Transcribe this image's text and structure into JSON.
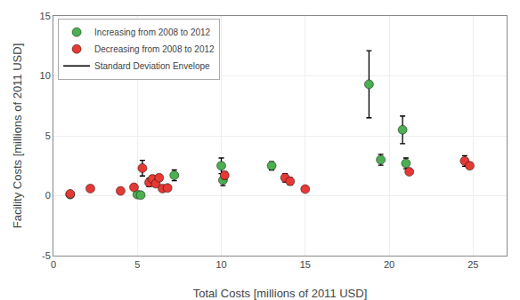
{
  "chart_data": {
    "type": "scatter",
    "xlabel": "Total Costs [millions of 2011 USD]",
    "ylabel": "Facility Costs [millions of 2011 USD]",
    "xlim": [
      0,
      27
    ],
    "ylim": [
      -5,
      15
    ],
    "xticks": [
      0,
      5,
      10,
      15,
      20,
      25
    ],
    "yticks": [
      -5,
      0,
      5,
      10,
      15
    ],
    "grid": true,
    "legend": "upper left",
    "series": [
      {
        "name": "Increasing from 2008 to 2012",
        "color": "#4CAF50",
        "marker": "circle",
        "x": [
          1.0,
          5.0,
          5.2,
          7.2,
          10.0,
          10.1,
          13.0,
          18.8,
          20.8,
          21.0,
          19.5
        ],
        "values": [
          0.1,
          0.1,
          0.05,
          1.7,
          2.5,
          1.3,
          2.5,
          9.3,
          5.5,
          2.7,
          3.0
        ],
        "yerr": [
          0.12,
          0.12,
          0.1,
          0.45,
          0.65,
          0.45,
          0.35,
          2.8,
          1.15,
          0.45,
          0.45
        ]
      },
      {
        "name": "Decreasing from 2008 to 2012",
        "color": "#E53935",
        "marker": "circle",
        "x": [
          1.0,
          2.2,
          4.0,
          4.8,
          5.3,
          5.7,
          5.9,
          6.1,
          6.3,
          6.5,
          6.8,
          10.2,
          13.8,
          14.1,
          15.0,
          21.2,
          24.5,
          24.8
        ],
        "values": [
          0.15,
          0.6,
          0.4,
          0.7,
          2.3,
          1.1,
          1.4,
          1.0,
          1.5,
          0.6,
          0.65,
          1.7,
          1.5,
          1.2,
          0.55,
          2.0,
          2.9,
          2.5
        ],
        "yerr": [
          0.0,
          0.0,
          0.0,
          0.0,
          0.65,
          0.35,
          0.3,
          0.2,
          0.25,
          0.0,
          0.0,
          0.3,
          0.35,
          0.3,
          0.0,
          0.0,
          0.45,
          0.25
        ]
      },
      {
        "name": "Standard Deviation Envelope",
        "type": "line",
        "color": "#000000",
        "line_style": "solid",
        "x": [],
        "values": []
      }
    ]
  }
}
